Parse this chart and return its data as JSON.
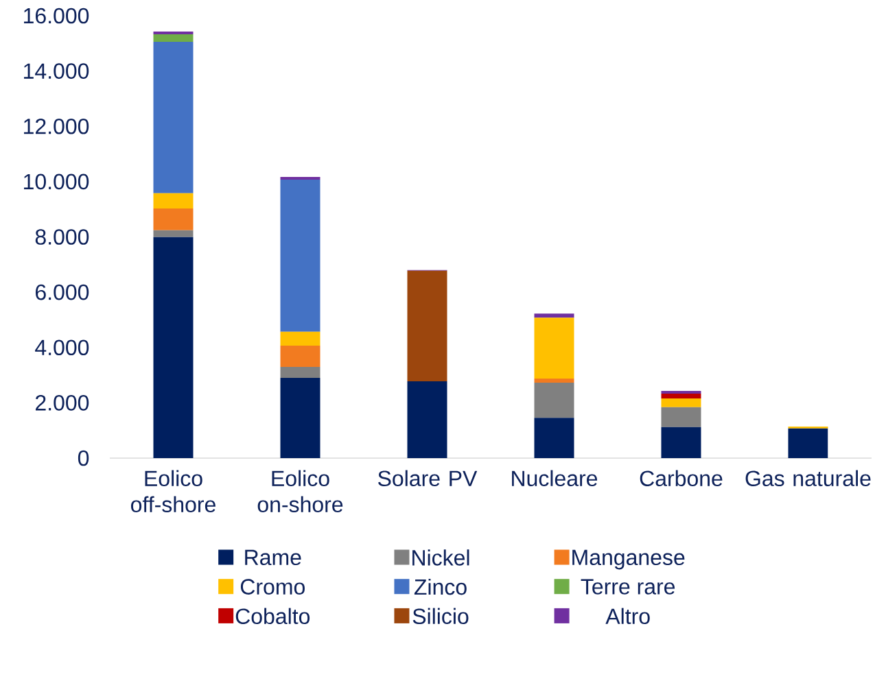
{
  "chart_data": {
    "type": "bar",
    "stacked": true,
    "categories": [
      "Eolico off-shore",
      "Eolico on-shore",
      "Solare PV",
      "Nucleare",
      "Carbone",
      "Gas naturale"
    ],
    "series": [
      {
        "name": "Rame",
        "color": "#001f5f",
        "values": [
          8000,
          2900,
          2780,
          1460,
          1120,
          1070
        ]
      },
      {
        "name": "Nickel",
        "color": "#808080",
        "values": [
          240,
          400,
          0,
          1270,
          720,
          0
        ]
      },
      {
        "name": "Manganese",
        "color": "#f27b20",
        "values": [
          790,
          770,
          0,
          150,
          0,
          0
        ]
      },
      {
        "name": "Cromo",
        "color": "#ffc000",
        "values": [
          550,
          500,
          0,
          2200,
          320,
          70
        ]
      },
      {
        "name": "Zinco",
        "color": "#4472c4",
        "values": [
          5480,
          5500,
          0,
          0,
          0,
          0
        ]
      },
      {
        "name": "Terre rare",
        "color": "#70ad47",
        "values": [
          270,
          0,
          0,
          0,
          0,
          0
        ]
      },
      {
        "name": "Cobalto",
        "color": "#c00000",
        "values": [
          0,
          0,
          0,
          0,
          170,
          0
        ]
      },
      {
        "name": "Silicio",
        "color": "#9c460d",
        "values": [
          0,
          0,
          4000,
          0,
          0,
          0
        ]
      },
      {
        "name": "Altro",
        "color": "#7030a0",
        "values": [
          100,
          100,
          20,
          150,
          100,
          0
        ]
      }
    ],
    "ylim": [
      0,
      16000
    ],
    "yticks": [
      0,
      {
        "value": 2000,
        "label": "2.000"
      },
      {
        "value": 4000,
        "label": "4.000"
      },
      {
        "value": 6000,
        "label": "6.000"
      },
      {
        "value": 8000,
        "label": "8.000"
      },
      {
        "value": 10000,
        "label": "10.000"
      },
      {
        "value": 12000,
        "label": "12.000"
      },
      {
        "value": 14000,
        "label": "14.000"
      },
      {
        "value": 16000,
        "label": "16.000"
      }
    ],
    "grid": false,
    "legend": "bottom"
  }
}
